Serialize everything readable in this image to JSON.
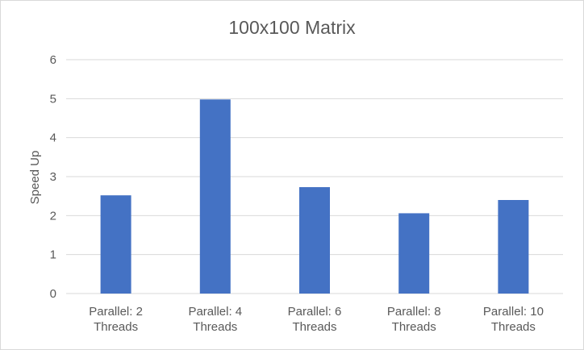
{
  "chart_data": {
    "type": "bar",
    "title": "100x100 Matrix",
    "xlabel": "",
    "ylabel": "Speed Up",
    "ylim": [
      0,
      6
    ],
    "yticks": [
      "0",
      "1",
      "2",
      "3",
      "4",
      "5",
      "6"
    ],
    "grid": true,
    "legend": "none",
    "categories": [
      [
        "Parallel: 2",
        "Threads"
      ],
      [
        "Parallel: 4",
        "Threads"
      ],
      [
        "Parallel: 6",
        "Threads"
      ],
      [
        "Parallel: 8",
        "Threads"
      ],
      [
        "Parallel: 10",
        "Threads"
      ]
    ],
    "values": [
      2.52,
      4.98,
      2.73,
      2.06,
      2.4
    ],
    "bar_color": "#4472c4"
  }
}
